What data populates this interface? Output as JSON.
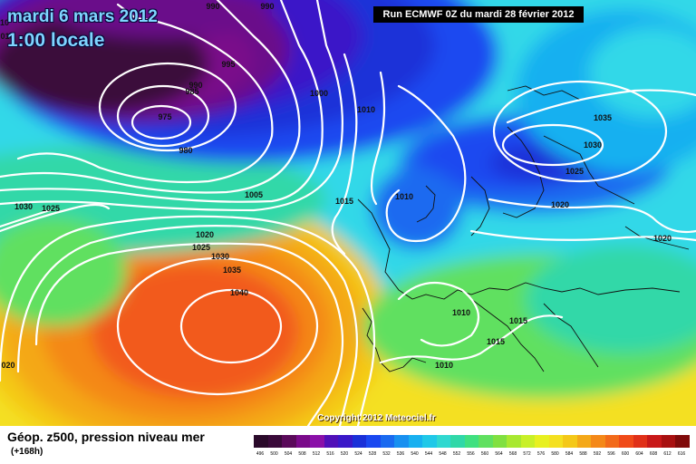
{
  "map": {
    "date_title": "mardi 6 mars 2012",
    "time_title": "1:00 locale",
    "run_info": "Run ECMWF 0Z du mardi 28 février 2012",
    "copyright": "Copyright 2012 Meteociel.fr",
    "isobar_labels": [
      {
        "text": "990"
      },
      {
        "text": "990"
      },
      {
        "text": "10"
      },
      {
        "text": "015"
      },
      {
        "text": "995"
      },
      {
        "text": "990"
      },
      {
        "text": "985"
      },
      {
        "text": "975"
      },
      {
        "text": "980"
      },
      {
        "text": "1000"
      },
      {
        "text": "1005"
      },
      {
        "text": "1010"
      },
      {
        "text": "1010"
      },
      {
        "text": "1015"
      },
      {
        "text": "1030"
      },
      {
        "text": "1025"
      },
      {
        "text": "1020"
      },
      {
        "text": "1025"
      },
      {
        "text": "1030"
      },
      {
        "text": "1035"
      },
      {
        "text": "1040"
      },
      {
        "text": "020"
      },
      {
        "text": "1035"
      },
      {
        "text": "1030"
      },
      {
        "text": "1025"
      },
      {
        "text": "1020"
      },
      {
        "text": "1020"
      },
      {
        "text": "1010"
      },
      {
        "text": "1015"
      },
      {
        "text": "1015"
      },
      {
        "text": "1010"
      }
    ],
    "fill_colors": {
      "deep_low": "#3a0a3a",
      "low_purple": "#6a0a8a",
      "violet": "#3a10b0",
      "blue": "#1a3ae0",
      "mid_blue": "#1f6bf0",
      "light_blue": "#18b8f0",
      "cyan": "#30d8e8",
      "teal": "#30d8a8",
      "green": "#60e060",
      "yellow_green": "#b8e830",
      "yellow": "#f4e020",
      "orange": "#f49a18",
      "red_orange": "#f25a1a"
    }
  },
  "legend": {
    "title": "Géop. z500, pression niveau mer",
    "subtitle": "(+168h)",
    "colorbar": {
      "values": [
        "496",
        "500",
        "504",
        "508",
        "512",
        "516",
        "520",
        "524",
        "528",
        "532",
        "536",
        "540",
        "544",
        "548",
        "552",
        "556",
        "560",
        "564",
        "568",
        "572",
        "576",
        "580",
        "584",
        "588",
        "592",
        "596",
        "600",
        "604",
        "608",
        "612",
        "616"
      ],
      "colors": [
        "#2a0a2a",
        "#3a0a3a",
        "#5a0a5a",
        "#7a0a8a",
        "#8a10a8",
        "#5010b8",
        "#3a18c8",
        "#1a30d8",
        "#1a48f0",
        "#1a6af0",
        "#1890f0",
        "#18b0f0",
        "#20c8e8",
        "#30d8d0",
        "#30d8a8",
        "#40e080",
        "#60e060",
        "#80e040",
        "#a8e830",
        "#c8f028",
        "#e8f020",
        "#f4e020",
        "#f4c818",
        "#f4a818",
        "#f48818",
        "#f26a1a",
        "#f04a18",
        "#e03018",
        "#c81818",
        "#a81010",
        "#800a0a"
      ]
    }
  }
}
